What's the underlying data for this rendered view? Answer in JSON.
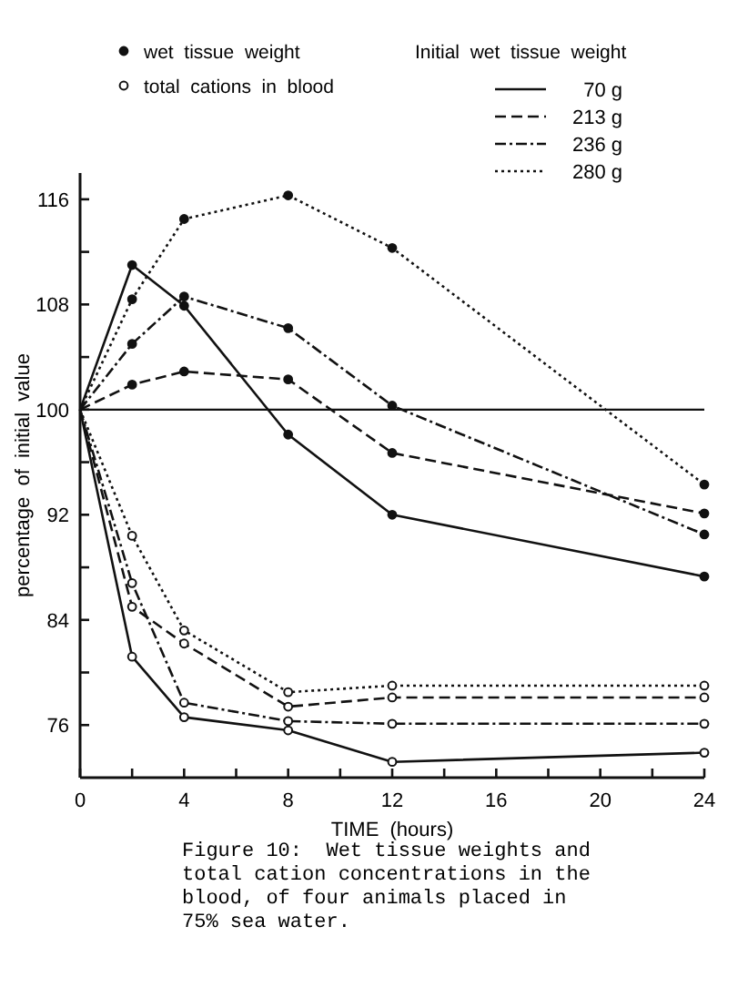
{
  "chart_data": {
    "type": "line",
    "xlabel": "TIME  (hours)",
    "ylabel": "percentage  of  initial  value",
    "legend_title": "Initial  wet  tissue  weight",
    "legend": "top right",
    "grid": false,
    "x": [
      0,
      2,
      4,
      8,
      12,
      24
    ],
    "xlim": [
      0,
      24
    ],
    "ylim": [
      72,
      118
    ],
    "xticks": [
      0,
      {
        "value": 2,
        "label": null
      },
      4,
      {
        "value": 6,
        "label": null
      },
      8,
      {
        "value": 10,
        "label": null
      },
      12,
      {
        "value": 14,
        "label": null
      },
      16,
      {
        "value": 18,
        "label": null
      },
      20,
      {
        "value": 22,
        "label": null
      },
      24
    ],
    "yticks": [
      76,
      {
        "value": 80,
        "label": null
      },
      84,
      {
        "value": 88,
        "label": null
      },
      92,
      {
        "value": 96,
        "label": null
      },
      100,
      {
        "value": 104,
        "label": null
      },
      108,
      {
        "value": 112,
        "label": null
      },
      116
    ],
    "ref_lines": [
      {
        "axis": "y",
        "value": 100,
        "label": null
      }
    ],
    "series": [
      {
        "name": "70 g",
        "color": "#111111",
        "line_style": "solid",
        "marker": "circle",
        "values": [
          100,
          111,
          107.9,
          98.1,
          92,
          87.3
        ]
      },
      {
        "name": "213 g",
        "color": "#111111",
        "line_style": "dashed",
        "marker": "circle",
        "values": [
          100,
          101.9,
          102.9,
          102.3,
          96.7,
          92.1
        ]
      },
      {
        "name": "236 g",
        "color": "#111111",
        "line_style": "dashdot",
        "marker": "circle",
        "values": [
          100,
          105,
          108.6,
          106.2,
          100.3,
          90.5
        ]
      },
      {
        "name": "280 g",
        "color": "#111111",
        "line_style": "dotted",
        "marker": "circle",
        "values": [
          100,
          108.4,
          114.5,
          116.3,
          112.3,
          94.3
        ]
      },
      {
        "color": "#111111",
        "line_style": "solid",
        "marker": "circle-open",
        "values": [
          100,
          81.2,
          76.6,
          75.6,
          73.2,
          73.9
        ]
      },
      {
        "color": "#111111",
        "line_style": "dashed",
        "marker": "circle-open",
        "values": [
          100,
          85,
          82.2,
          77.4,
          78.1,
          78.1
        ]
      },
      {
        "color": "#111111",
        "line_style": "dashdot",
        "marker": "circle-open",
        "values": [
          100,
          86.8,
          77.7,
          76.3,
          76.1,
          76.1
        ]
      },
      {
        "color": "#111111",
        "line_style": "dotted",
        "marker": "circle-open",
        "values": [
          100,
          90.4,
          83.2,
          78.5,
          79,
          79
        ]
      }
    ],
    "annotations": [
      "wet  tissue  weight",
      "total  cations  in  blood",
      "Figure 10:  Wet tissue weights and total cation concentrations in the blood, of four animals placed in 75% sea water."
    ]
  }
}
